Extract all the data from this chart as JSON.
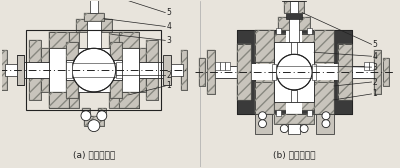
{
  "bg_color": "#e8e4dc",
  "title_left": "(a) 浮动式球阀",
  "title_right": "(b) 固定式球阀",
  "fig_width": 4.0,
  "fig_height": 1.68,
  "dpi": 100,
  "lc": "#222222",
  "hatch_gray": "#999999",
  "body_gray": "#c8c4bc",
  "dark_gray": "#3a3a3a",
  "mid_gray": "#888880",
  "light": "#f0ede8",
  "white": "#ffffff",
  "black": "#111111"
}
